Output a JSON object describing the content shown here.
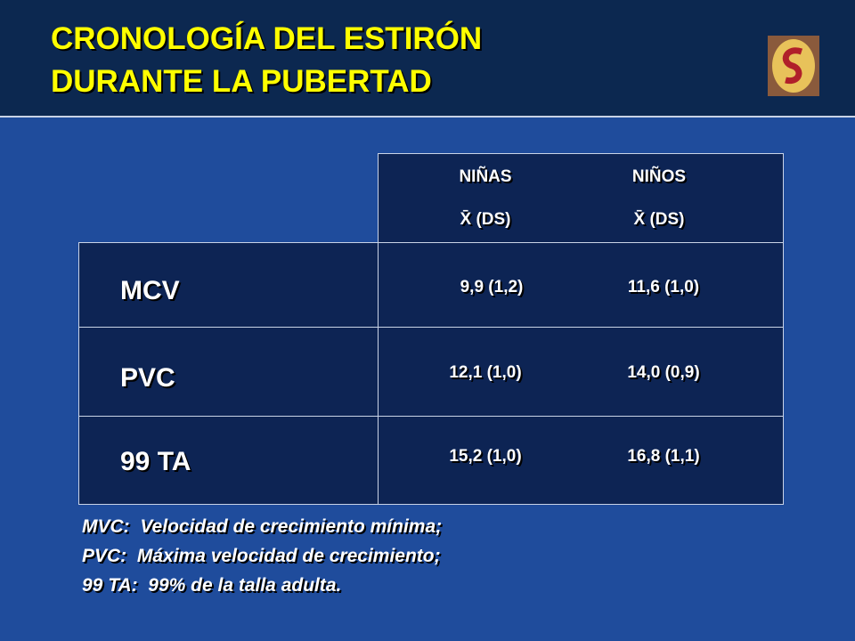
{
  "header": {
    "title_lines": [
      "CRONOLOGÍA DEL ESTIRÓN",
      "DURANTE LA PUBERTAD"
    ]
  },
  "table": {
    "columns": [
      {
        "name": "NIÑAS",
        "stat": "X̄ (DS)"
      },
      {
        "name": "NIÑOS",
        "stat": "X̄ (DS)"
      }
    ],
    "rows": [
      {
        "label": "MCV",
        "cells": [
          "9,9 (1,2)",
          "11,6 (1,0)"
        ]
      },
      {
        "label": "PVC",
        "cells": [
          "12,1 (1,0)",
          "14,0 (0,9)"
        ]
      },
      {
        "label": "99 TA",
        "cells": [
          "15,2 (1,0)",
          "16,8 (1,1)"
        ]
      }
    ]
  },
  "footnotes": [
    "MVC:  Velocidad de crecimiento mínima;",
    "PVC:  Máxima velocidad de crecimiento;",
    "99 TA:  99% de la talla adulta."
  ]
}
